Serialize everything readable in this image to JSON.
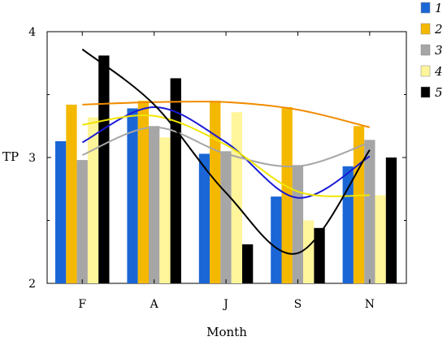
{
  "chart_data": {
    "type": "bar",
    "title": "",
    "xlabel": "Month",
    "ylabel": "TP",
    "ylim": [
      2,
      4
    ],
    "yticks": [
      "2",
      "3",
      "4"
    ],
    "categories": [
      "F",
      "A",
      "J",
      "S",
      "N"
    ],
    "grid": false,
    "legend_position": "right",
    "series": [
      {
        "name": "1",
        "color": "#1a66d6",
        "values": [
          3.13,
          3.39,
          3.03,
          2.69,
          2.93
        ]
      },
      {
        "name": "2",
        "color": "#f5b800",
        "values": [
          3.42,
          3.45,
          3.45,
          3.4,
          3.25
        ]
      },
      {
        "name": "3",
        "color": "#a6a6a6",
        "values": [
          2.98,
          3.25,
          3.05,
          2.94,
          3.14
        ]
      },
      {
        "name": "4",
        "color": "#fff59a",
        "values": [
          3.32,
          3.16,
          3.36,
          2.5,
          2.7
        ]
      },
      {
        "name": "5",
        "color": "#000000",
        "values": [
          3.81,
          3.63,
          2.31,
          2.44,
          3.0
        ]
      }
    ],
    "trend_lines": [
      {
        "series": "1",
        "color": "#1a1ad6",
        "values": [
          3.12,
          3.4,
          3.12,
          2.68,
          3.01
        ]
      },
      {
        "series": "2",
        "color": "#f08c00",
        "values": [
          3.42,
          3.44,
          3.44,
          3.38,
          3.24
        ]
      },
      {
        "series": "3",
        "color": "#a6a6a6",
        "values": [
          3.02,
          3.24,
          3.03,
          2.93,
          3.12
        ]
      },
      {
        "series": "4",
        "color": "#f0e600",
        "values": [
          3.26,
          3.33,
          3.1,
          2.73,
          2.7
        ]
      },
      {
        "series": "5",
        "color": "#000000",
        "values": [
          3.86,
          3.42,
          2.72,
          2.24,
          3.06
        ]
      }
    ]
  }
}
